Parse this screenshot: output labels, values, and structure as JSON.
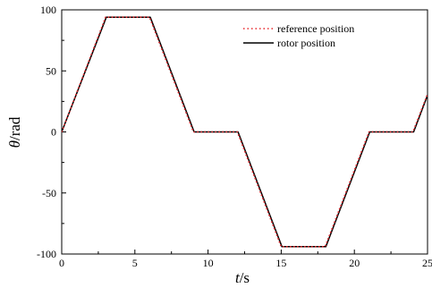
{
  "chart_data": {
    "type": "line",
    "title": "",
    "xlabel_var": "t",
    "xlabel_unit": "/s",
    "ylabel_var": "θ",
    "ylabel_unit": "/rad",
    "xlim": [
      0,
      25
    ],
    "ylim": [
      -100,
      100
    ],
    "x_ticks": [
      0,
      5,
      10,
      15,
      20,
      25
    ],
    "y_ticks": [
      100,
      50,
      0,
      -50,
      -100
    ],
    "x_tick_labels": [
      "0",
      "5",
      "10",
      "15",
      "20",
      "25"
    ],
    "y_tick_labels": [
      "100",
      "50",
      "0",
      "-50",
      "-100"
    ],
    "grid": false,
    "legend_position": "top-right",
    "series": [
      {
        "name": "reference position",
        "style": "dotted",
        "color": "#e8262b",
        "x": [
          0,
          3,
          6,
          9,
          12,
          15,
          18,
          21,
          24,
          25
        ],
        "y": [
          0,
          94,
          94,
          0,
          0,
          -94,
          -94,
          0,
          0,
          31
        ]
      },
      {
        "name": "rotor position",
        "style": "solid",
        "color": "#000000",
        "x": [
          0,
          3.05,
          6.05,
          9.05,
          12.05,
          15.05,
          18.05,
          21.05,
          24.05,
          25
        ],
        "y": [
          0,
          94,
          94,
          0,
          0,
          -94,
          -94,
          0,
          0,
          30
        ]
      }
    ]
  }
}
